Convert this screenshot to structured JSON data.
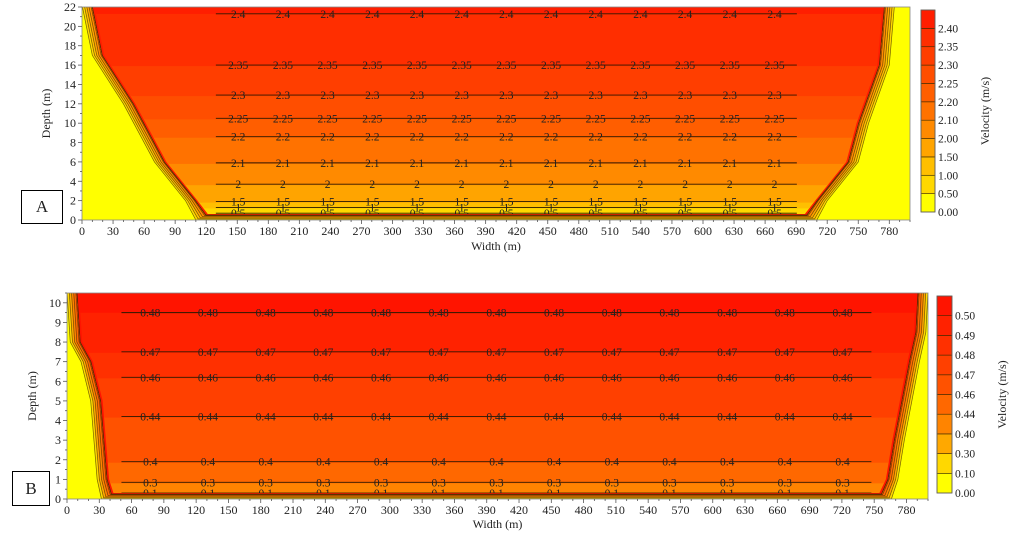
{
  "chart_data": [
    {
      "panel": "A",
      "type": "heatmap",
      "subtype": "filled-contour",
      "title": "",
      "xlabel": "Width (m)",
      "ylabel": "Depth (m)",
      "colorbar_label": "Velocity (m/s)",
      "xlim": [
        0,
        800
      ],
      "ylim": [
        0,
        22
      ],
      "xticks": [
        0,
        30,
        60,
        90,
        120,
        150,
        180,
        210,
        240,
        270,
        300,
        330,
        360,
        390,
        420,
        450,
        480,
        510,
        540,
        570,
        600,
        630,
        660,
        690,
        720,
        750,
        780
      ],
      "yticks": [
        0,
        2,
        4,
        6,
        8,
        10,
        12,
        14,
        16,
        18,
        20,
        22
      ],
      "colorbar_levels": [
        "0.00",
        "0.50",
        "1.00",
        "1.50",
        "2.00",
        "2.10",
        "2.20",
        "2.25",
        "2.30",
        "2.35",
        "2.40"
      ],
      "colorbar_colors": [
        "#ffff00",
        "#ffd800",
        "#ffbf00",
        "#ffa400",
        "#ff8a00",
        "#ff7200",
        "#ff5e00",
        "#ff4e00",
        "#ff3e00",
        "#ff2e00",
        "#ff1e00"
      ],
      "contours": [
        {
          "level": 2.4,
          "depth": 21.3,
          "labels": 13
        },
        {
          "level": 2.35,
          "depth": 16.0,
          "labels": 13
        },
        {
          "level": 2.3,
          "depth": 12.9,
          "labels": 13
        },
        {
          "level": 2.25,
          "depth": 10.5,
          "labels": 13
        },
        {
          "level": 2.2,
          "depth": 8.6,
          "labels": 13
        },
        {
          "level": 2.1,
          "depth": 5.9,
          "labels": 13
        },
        {
          "level": 2,
          "depth": 3.7,
          "labels": 13
        },
        {
          "level": 1.5,
          "depth": 1.9,
          "labels": 13
        },
        {
          "level": 1,
          "depth": 1.3,
          "labels": 13
        },
        {
          "level": 0.5,
          "depth": 0.7,
          "labels": 13
        }
      ],
      "bank_profile": {
        "left": [
          [
            0,
            22
          ],
          [
            10,
            17
          ],
          [
            40,
            12
          ],
          [
            50,
            10
          ],
          [
            70,
            6
          ],
          [
            100,
            2
          ],
          [
            110,
            0
          ]
        ],
        "right": [
          [
            710,
            0
          ],
          [
            720,
            2
          ],
          [
            750,
            6
          ],
          [
            760,
            10
          ],
          [
            770,
            13
          ],
          [
            780,
            16
          ],
          [
            785,
            22
          ]
        ]
      },
      "inline_labels": [
        "2.4",
        "2.35",
        "2.3",
        "2.25",
        "2.2",
        "2.1",
        "2",
        "1.5",
        "1",
        "0.5"
      ]
    },
    {
      "panel": "B",
      "type": "heatmap",
      "subtype": "filled-contour",
      "title": "",
      "xlabel": "Width (m)",
      "ylabel": "Depth (m)",
      "colorbar_label": "Velocity (m/s)",
      "xlim": [
        0,
        800
      ],
      "ylim": [
        0,
        10.5
      ],
      "xticks": [
        0,
        30,
        60,
        90,
        120,
        150,
        180,
        210,
        240,
        270,
        300,
        330,
        360,
        390,
        420,
        450,
        480,
        510,
        540,
        570,
        600,
        630,
        660,
        690,
        720,
        750,
        780
      ],
      "yticks": [
        0,
        1,
        2,
        3,
        4,
        5,
        6,
        7,
        8,
        9,
        10
      ],
      "colorbar_levels": [
        "0.00",
        "0.10",
        "0.30",
        "0.40",
        "0.44",
        "0.46",
        "0.47",
        "0.48",
        "0.49",
        "0.50"
      ],
      "colorbar_colors": [
        "#ffff00",
        "#ffd800",
        "#ffa800",
        "#ff8400",
        "#ff6800",
        "#ff5200",
        "#ff4000",
        "#ff3000",
        "#ff2200",
        "#ff1400"
      ],
      "contours": [
        {
          "level": 0.48,
          "depth": 9.5,
          "labels": 13
        },
        {
          "level": 0.47,
          "depth": 7.5,
          "labels": 13
        },
        {
          "level": 0.46,
          "depth": 6.2,
          "labels": 13
        },
        {
          "level": 0.44,
          "depth": 4.2,
          "labels": 13
        },
        {
          "level": 0.4,
          "depth": 1.9,
          "labels": 13
        },
        {
          "level": 0.3,
          "depth": 0.85,
          "labels": 13
        },
        {
          "level": 0.1,
          "depth": 0.3,
          "labels": 13
        }
      ],
      "bank_profile": {
        "left": [
          [
            0,
            10.5
          ],
          [
            3,
            8
          ],
          [
            13,
            7
          ],
          [
            22,
            5
          ],
          [
            25,
            3
          ],
          [
            28,
            1
          ],
          [
            32,
            0
          ]
        ],
        "right": [
          [
            766,
            0
          ],
          [
            772,
            1
          ],
          [
            778,
            3
          ],
          [
            785,
            5
          ],
          [
            792,
            7
          ],
          [
            798,
            8.5
          ],
          [
            800,
            10.5
          ]
        ]
      },
      "inline_labels": [
        "0.48",
        "0.47",
        "0.46",
        "0.44",
        "0.4",
        "0.3",
        "0.1"
      ]
    }
  ],
  "panels": {
    "A": {
      "label": "A"
    },
    "B": {
      "label": "B"
    }
  }
}
